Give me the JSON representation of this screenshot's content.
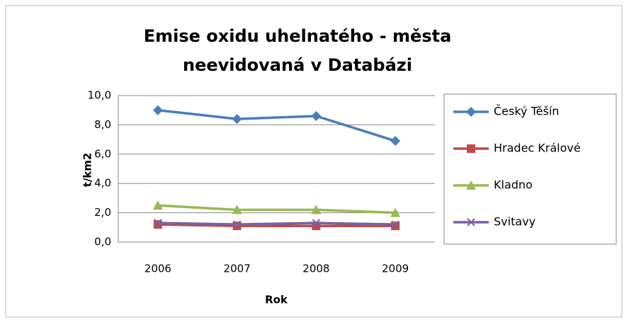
{
  "chart_data": {
    "type": "line",
    "title": [
      "Emise oxidu uhelnatého - města",
      "neevidovaná v Databázi"
    ],
    "x_label": "Rok",
    "y_label": "t/km2",
    "categories": [
      "2006",
      "2007",
      "2008",
      "2009"
    ],
    "series": [
      {
        "name": "Český Těšín",
        "color": "#4a7ebb",
        "marker": "diamond",
        "values": [
          9.0,
          8.4,
          8.6,
          6.9
        ]
      },
      {
        "name": "Hradec Králové",
        "color": "#be4b48",
        "marker": "square",
        "values": [
          1.2,
          1.1,
          1.1,
          1.1
        ]
      },
      {
        "name": "Kladno",
        "color": "#98b954",
        "marker": "triangle",
        "values": [
          2.5,
          2.2,
          2.2,
          2.0
        ]
      },
      {
        "name": "Svitavy",
        "color": "#7d60a0",
        "marker": "x",
        "values": [
          1.3,
          1.2,
          1.3,
          1.2
        ]
      }
    ],
    "ylim": [
      0,
      10
    ],
    "yticks": [
      {
        "value": 0,
        "label": "0,0"
      },
      {
        "value": 2,
        "label": "2,0"
      },
      {
        "value": 4,
        "label": "4,0"
      },
      {
        "value": 6,
        "label": "6,0"
      },
      {
        "value": 8,
        "label": "8,0"
      },
      {
        "value": 10,
        "label": "10,0"
      }
    ],
    "grid": true,
    "legend": "right"
  }
}
